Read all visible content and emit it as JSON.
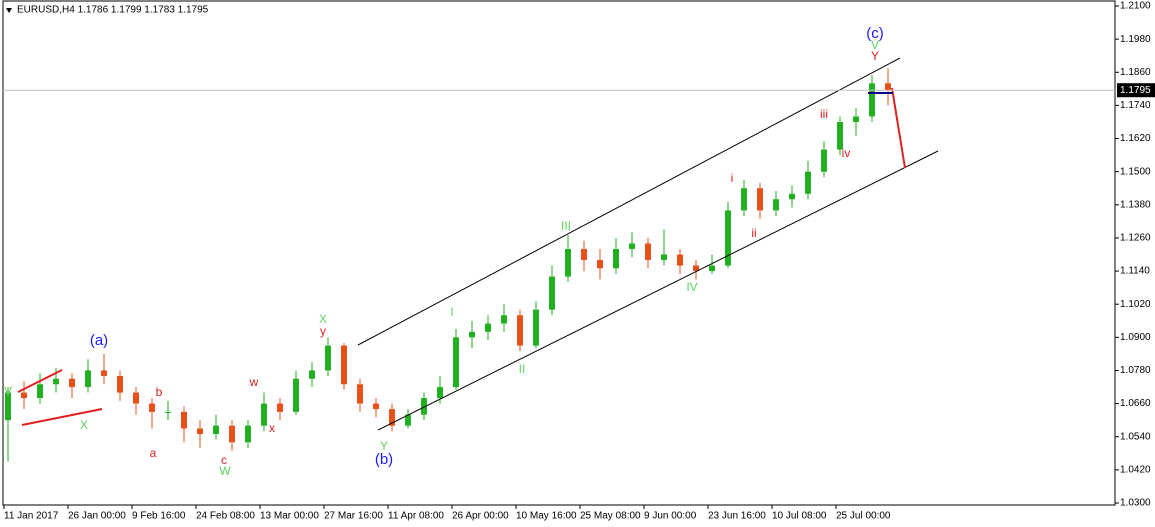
{
  "chart_data": {
    "type": "candlestick",
    "header": "EURUSD,H4  1.1786 1.1799 1.1783 1.1795",
    "up_color": "#22b022",
    "down_color": "#e8501a",
    "categories": [
      "11 Jan 2017",
      null,
      null,
      null,
      "26 Jan 00:00",
      null,
      null,
      null,
      "9 Feb 16:00",
      null,
      null,
      null,
      "24 Feb 08:00",
      null,
      null,
      null,
      "13 Mar 00:00",
      null,
      null,
      null,
      "27 Mar 16:00",
      null,
      null,
      null,
      "11 Apr 08:00",
      null,
      null,
      null,
      "26 Apr 00:00",
      null,
      null,
      null,
      "10 May 16:00",
      null,
      null,
      null,
      "25 May 08:00",
      null,
      null,
      null,
      "9 Jun 00:00",
      null,
      null,
      null,
      "23 Jun 16:00",
      null,
      null,
      null,
      "10 Jul 08:00",
      null,
      null,
      null,
      "25 Jul 00:00",
      null,
      null,
      null
    ],
    "open": [
      1.06,
      1.07,
      1.068,
      1.073,
      1.075,
      1.072,
      1.078,
      1.076,
      1.07,
      1.066,
      1.063,
      1.063,
      1.057,
      1.055,
      1.058,
      1.052,
      1.058,
      1.066,
      1.063,
      1.075,
      1.078,
      1.087,
      1.073,
      1.066,
      1.064,
      1.058,
      1.062,
      1.068,
      1.072,
      1.09,
      1.092,
      1.095,
      1.098,
      1.087,
      1.1,
      1.112,
      1.122,
      1.118,
      1.115,
      1.122,
      1.124,
      1.118,
      1.12,
      1.116,
      1.114,
      1.116,
      1.136,
      1.144,
      1.136,
      1.14,
      1.142,
      1.15,
      1.158,
      1.168,
      1.17,
      1.182
    ],
    "high": [
      1.072,
      1.074,
      1.077,
      1.079,
      1.077,
      1.082,
      1.084,
      1.078,
      1.072,
      1.068,
      1.067,
      1.065,
      1.06,
      1.062,
      1.06,
      1.06,
      1.07,
      1.068,
      1.078,
      1.081,
      1.09,
      1.088,
      1.075,
      1.068,
      1.066,
      1.064,
      1.07,
      1.076,
      1.093,
      1.096,
      1.098,
      1.102,
      1.1,
      1.103,
      1.116,
      1.127,
      1.125,
      1.122,
      1.126,
      1.128,
      1.126,
      1.129,
      1.122,
      1.118,
      1.12,
      1.139,
      1.147,
      1.146,
      1.143,
      1.145,
      1.154,
      1.161,
      1.17,
      1.173,
      1.185,
      1.1875
    ],
    "low": [
      1.045,
      1.064,
      1.066,
      1.07,
      1.068,
      1.07,
      1.073,
      1.067,
      1.062,
      1.057,
      1.06,
      1.052,
      1.05,
      1.053,
      1.049,
      1.05,
      1.056,
      1.06,
      1.062,
      1.072,
      1.076,
      1.071,
      1.063,
      1.061,
      1.056,
      1.057,
      1.06,
      1.066,
      1.071,
      1.086,
      1.089,
      1.092,
      1.085,
      1.086,
      1.098,
      1.11,
      1.114,
      1.111,
      1.113,
      1.119,
      1.115,
      1.116,
      1.113,
      1.111,
      1.113,
      1.115,
      1.134,
      1.133,
      1.134,
      1.137,
      1.14,
      1.148,
      1.156,
      1.163,
      1.168,
      1.174
    ],
    "close": [
      1.07,
      1.068,
      1.073,
      1.075,
      1.072,
      1.078,
      1.076,
      1.07,
      1.066,
      1.063,
      1.063,
      1.057,
      1.055,
      1.058,
      1.052,
      1.058,
      1.066,
      1.063,
      1.075,
      1.078,
      1.087,
      1.073,
      1.066,
      1.064,
      1.058,
      1.062,
      1.068,
      1.072,
      1.09,
      1.092,
      1.095,
      1.098,
      1.087,
      1.1,
      1.112,
      1.122,
      1.118,
      1.115,
      1.122,
      1.124,
      1.118,
      1.12,
      1.116,
      1.114,
      1.116,
      1.136,
      1.144,
      1.136,
      1.14,
      1.142,
      1.15,
      1.158,
      1.168,
      1.17,
      1.182,
      1.1795
    ],
    "ylim": [
      1.03,
      1.21
    ],
    "yticks": [
      {
        "value": 1.21,
        "label": "1.2100"
      },
      {
        "value": 1.198,
        "label": "1.1980"
      },
      {
        "value": 1.186,
        "label": "1.1860"
      },
      {
        "value": 1.174,
        "label": "1.1740"
      },
      {
        "value": 1.162,
        "label": "1.1620"
      },
      {
        "value": 1.15,
        "label": "1.1500"
      },
      {
        "value": 1.138,
        "label": "1.1380"
      },
      {
        "value": 1.126,
        "label": "1.1260"
      },
      {
        "value": 1.114,
        "label": "1.1140"
      },
      {
        "value": 1.102,
        "label": "1.1020"
      },
      {
        "value": 1.09,
        "label": "1.0900"
      },
      {
        "value": 1.078,
        "label": "1.0780"
      },
      {
        "value": 1.066,
        "label": "1.0660"
      },
      {
        "value": 1.054,
        "label": "1.0540"
      },
      {
        "value": 1.042,
        "label": "1.0420"
      },
      {
        "value": 1.03,
        "label": "1.0300"
      }
    ],
    "last_price": {
      "value": 1.1795,
      "label": "1.1795"
    },
    "annotations": [
      "(a)",
      "X",
      "b",
      "a",
      "c",
      "W",
      "w",
      "x",
      "X",
      "y",
      "(b)",
      "Y",
      "I",
      "II",
      "III",
      "IV",
      "i",
      "ii",
      "iii",
      "iv",
      "(c)",
      "V",
      "Y",
      "V"
    ]
  }
}
